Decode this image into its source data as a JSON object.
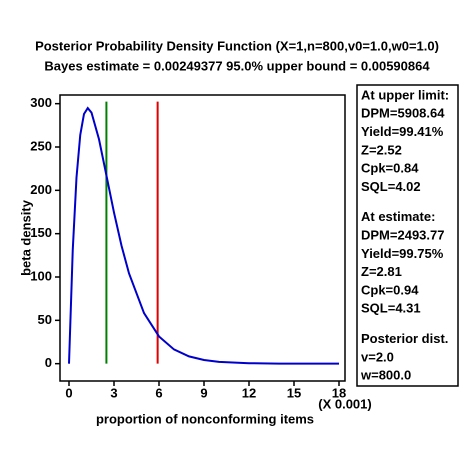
{
  "chart_data": {
    "type": "line",
    "title": "Posterior Probability Density Function (X=1,n=800,v0=1.0,w0=1.0)",
    "subtitle": "Bayes estimate = 0.00249377    95.0% upper bound = 0.00590864",
    "x_label": "proportion of nonconforming items",
    "x_scale_label": "(X 0.001)",
    "y_label": "beta density",
    "x": [
      0,
      0.25,
      0.5,
      0.75,
      1,
      1.25,
      1.5,
      2,
      2.5,
      3,
      3.5,
      4,
      5,
      6,
      7,
      8,
      9,
      10,
      12,
      14,
      16,
      18
    ],
    "series": [
      {
        "color": "#0000cc",
        "values": [
          0,
          131.2,
          214.9,
          263.9,
          288.1,
          294.9,
          289.7,
          258.9,
          216.8,
          174.4,
          136.2,
          104.2,
          58.4,
          31.4,
          16.4,
          8.4,
          4.2,
          2.1,
          0.5,
          0.1,
          0.03,
          0.01
        ]
      }
    ],
    "vlines": [
      {
        "x": 2.49377,
        "color": "#008000"
      },
      {
        "x": 5.90864,
        "color": "#e00000"
      }
    ],
    "xlim": [
      -0.6,
      18.4
    ],
    "xticks": [
      0,
      3,
      6,
      9,
      12,
      15,
      18
    ],
    "ylim": [
      -20,
      310
    ],
    "yticks": [
      0,
      50,
      100,
      150,
      200,
      250,
      300
    ],
    "panel": [
      "At upper limit:",
      "DPM=5908.64",
      "Yield=99.41%",
      "Z=2.52",
      "Cpk=0.84",
      "SQL=4.02",
      null,
      "At estimate:",
      "DPM=2493.77",
      "Yield=99.75%",
      "Z=2.81",
      "Cpk=0.94",
      "SQL=4.31",
      null,
      "Posterior dist.",
      "v=2.0",
      "w=800.0"
    ]
  }
}
